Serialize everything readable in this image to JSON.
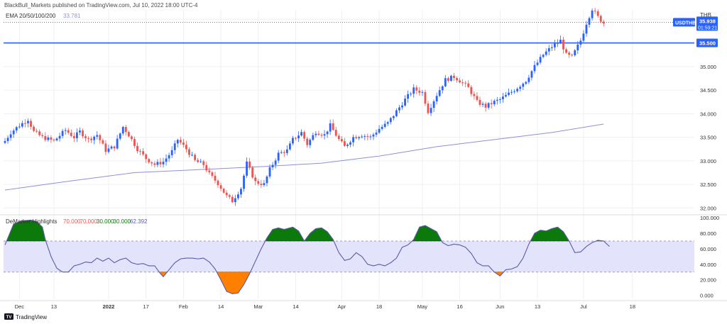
{
  "header": {
    "publish_line": "BlackBull_Markets published on TradingView.com, Jul 10, 2022 18:00 UTC-4"
  },
  "footer": {
    "logo_text": "TradingView",
    "logo_mark": "TV"
  },
  "colors": {
    "up": "#2962ff",
    "down": "#ef5350",
    "ema": "#8f8fd8",
    "level_line": "#2962ff",
    "price_dotted": "#2962ff",
    "demarker_line": "#5b5ba8",
    "band_fill": "#e3e3fb",
    "overbought_fill": "#0b7a0b",
    "oversold_fill": "#ff7f00",
    "grid": "#eef0f4",
    "axis_text": "#333333",
    "separator": "#d9dce3"
  },
  "chart_data": [
    {
      "type": "candlestick",
      "title": "USDTHB",
      "currency_label": "THB",
      "indicator_label": "EMA 20/50/100/200",
      "indicator_value": "33.781",
      "price_tag": {
        "symbol": "USDTHB",
        "price": "35.938",
        "countdown": "01:59:21",
        "value": 35.938
      },
      "level_line": {
        "label": "35.500",
        "value": 35.5
      },
      "top_tick_label": "36.000",
      "y_ticks": [
        "35.000",
        "34.500",
        "34.000",
        "33.500",
        "33.000",
        "32.500",
        "32.000"
      ],
      "y_tick_values": [
        35.0,
        34.5,
        34.0,
        33.5,
        33.0,
        32.5,
        32.0
      ],
      "ylim": [
        31.9,
        36.2
      ],
      "x_ticks": [
        "Dec",
        "13",
        "2022",
        "17",
        "Feb",
        "14",
        "Mar",
        "14",
        "Apr",
        "18",
        "May",
        "16",
        "Jun",
        "13",
        "Jul",
        "18"
      ],
      "x_tick_index": [
        5,
        17,
        36,
        49,
        62,
        75,
        88,
        101,
        117,
        130,
        145,
        158,
        172,
        185,
        201,
        218
      ],
      "bold_x_ticks": [
        "2022"
      ],
      "close_anchors": [
        [
          0,
          33.42
        ],
        [
          2,
          33.6
        ],
        [
          5,
          33.75
        ],
        [
          8,
          33.88
        ],
        [
          10,
          33.62
        ],
        [
          13,
          33.5
        ],
        [
          17,
          33.42
        ],
        [
          21,
          33.65
        ],
        [
          24,
          33.5
        ],
        [
          26,
          33.62
        ],
        [
          29,
          33.45
        ],
        [
          32,
          33.55
        ],
        [
          35,
          33.22
        ],
        [
          38,
          33.3
        ],
        [
          41,
          33.72
        ],
        [
          43,
          33.55
        ],
        [
          46,
          33.25
        ],
        [
          49,
          33.05
        ],
        [
          52,
          32.92
        ],
        [
          55,
          32.98
        ],
        [
          58,
          33.2
        ],
        [
          60,
          33.45
        ],
        [
          63,
          33.25
        ],
        [
          66,
          33.0
        ],
        [
          69,
          32.92
        ],
        [
          71,
          32.72
        ],
        [
          74,
          32.52
        ],
        [
          77,
          32.25
        ],
        [
          79,
          32.15
        ],
        [
          82,
          32.42
        ],
        [
          84,
          32.95
        ],
        [
          87,
          32.55
        ],
        [
          90,
          32.5
        ],
        [
          92,
          32.82
        ],
        [
          95,
          33.15
        ],
        [
          98,
          33.22
        ],
        [
          100,
          33.45
        ],
        [
          103,
          33.6
        ],
        [
          105,
          33.35
        ],
        [
          108,
          33.62
        ],
        [
          111,
          33.55
        ],
        [
          113,
          33.75
        ],
        [
          116,
          33.45
        ],
        [
          118,
          33.3
        ],
        [
          121,
          33.5
        ],
        [
          124,
          33.55
        ],
        [
          127,
          33.5
        ],
        [
          130,
          33.68
        ],
        [
          133,
          33.8
        ],
        [
          136,
          34.05
        ],
        [
          139,
          34.3
        ],
        [
          142,
          34.52
        ],
        [
          145,
          34.45
        ],
        [
          147,
          34.05
        ],
        [
          150,
          34.4
        ],
        [
          153,
          34.72
        ],
        [
          156,
          34.78
        ],
        [
          158,
          34.7
        ],
        [
          161,
          34.55
        ],
        [
          164,
          34.25
        ],
        [
          167,
          34.15
        ],
        [
          170,
          34.25
        ],
        [
          172,
          34.3
        ],
        [
          175,
          34.42
        ],
        [
          178,
          34.55
        ],
        [
          181,
          34.7
        ],
        [
          184,
          35.0
        ],
        [
          187,
          35.25
        ],
        [
          190,
          35.42
        ],
        [
          193,
          35.55
        ],
        [
          195,
          35.25
        ],
        [
          197,
          35.2
        ],
        [
          200,
          35.55
        ],
        [
          202,
          35.92
        ],
        [
          204,
          36.22
        ],
        [
          206,
          36.05
        ],
        [
          208,
          35.92
        ]
      ],
      "ema_anchors": [
        [
          0,
          32.38
        ],
        [
          20,
          32.55
        ],
        [
          45,
          32.75
        ],
        [
          70,
          32.82
        ],
        [
          90,
          32.88
        ],
        [
          110,
          32.95
        ],
        [
          130,
          33.1
        ],
        [
          150,
          33.3
        ],
        [
          170,
          33.45
        ],
        [
          190,
          33.6
        ],
        [
          208,
          33.78
        ]
      ]
    },
    {
      "type": "area",
      "title": "DeMarker Highlights",
      "values_text": [
        "70.000",
        "70.000",
        "30.000",
        "30.000",
        "62.392"
      ],
      "upper_band": 70,
      "lower_band": 30,
      "ylim": [
        -5,
        102
      ],
      "y_ticks": [
        "100.000",
        "80.000",
        "60.000",
        "40.000",
        "20.000",
        "0.000"
      ],
      "y_tick_values": [
        100,
        80,
        60,
        40,
        20,
        0
      ],
      "anchors": [
        [
          0,
          65
        ],
        [
          3,
          92
        ],
        [
          6,
          96
        ],
        [
          9,
          97
        ],
        [
          11,
          95
        ],
        [
          13,
          88
        ],
        [
          14,
          72
        ],
        [
          16,
          50
        ],
        [
          18,
          35
        ],
        [
          20,
          30
        ],
        [
          22,
          30
        ],
        [
          24,
          38
        ],
        [
          26,
          40
        ],
        [
          28,
          43
        ],
        [
          30,
          42
        ],
        [
          32,
          48
        ],
        [
          34,
          44
        ],
        [
          36,
          48
        ],
        [
          38,
          42
        ],
        [
          40,
          46
        ],
        [
          42,
          48
        ],
        [
          44,
          42
        ],
        [
          46,
          40
        ],
        [
          48,
          41
        ],
        [
          50,
          38
        ],
        [
          52,
          38
        ],
        [
          54,
          28
        ],
        [
          55,
          24
        ],
        [
          57,
          33
        ],
        [
          59,
          42
        ],
        [
          61,
          47
        ],
        [
          63,
          48
        ],
        [
          65,
          48
        ],
        [
          67,
          47
        ],
        [
          69,
          48
        ],
        [
          71,
          43
        ],
        [
          73,
          34
        ],
        [
          75,
          20
        ],
        [
          77,
          5
        ],
        [
          79,
          2
        ],
        [
          81,
          3
        ],
        [
          83,
          14
        ],
        [
          85,
          28
        ],
        [
          87,
          44
        ],
        [
          89,
          60
        ],
        [
          91,
          74
        ],
        [
          93,
          85
        ],
        [
          95,
          87
        ],
        [
          97,
          85
        ],
        [
          98,
          86
        ],
        [
          100,
          88
        ],
        [
          102,
          83
        ],
        [
          104,
          70
        ],
        [
          106,
          80
        ],
        [
          108,
          86
        ],
        [
          110,
          87
        ],
        [
          112,
          82
        ],
        [
          114,
          72
        ],
        [
          116,
          55
        ],
        [
          118,
          45
        ],
        [
          120,
          47
        ],
        [
          122,
          55
        ],
        [
          124,
          50
        ],
        [
          126,
          40
        ],
        [
          128,
          38
        ],
        [
          130,
          40
        ],
        [
          132,
          38
        ],
        [
          134,
          42
        ],
        [
          136,
          48
        ],
        [
          138,
          62
        ],
        [
          140,
          65
        ],
        [
          142,
          72
        ],
        [
          144,
          88
        ],
        [
          146,
          90
        ],
        [
          148,
          86
        ],
        [
          150,
          82
        ],
        [
          152,
          68
        ],
        [
          154,
          64
        ],
        [
          156,
          66
        ],
        [
          158,
          65
        ],
        [
          160,
          62
        ],
        [
          162,
          54
        ],
        [
          164,
          42
        ],
        [
          166,
          38
        ],
        [
          168,
          38
        ],
        [
          170,
          30
        ],
        [
          172,
          25
        ],
        [
          174,
          33
        ],
        [
          176,
          34
        ],
        [
          178,
          37
        ],
        [
          180,
          48
        ],
        [
          182,
          66
        ],
        [
          184,
          80
        ],
        [
          186,
          84
        ],
        [
          188,
          83
        ],
        [
          190,
          86
        ],
        [
          192,
          88
        ],
        [
          194,
          82
        ],
        [
          196,
          70
        ],
        [
          198,
          55
        ],
        [
          200,
          56
        ],
        [
          202,
          63
        ],
        [
          204,
          68
        ],
        [
          206,
          71
        ],
        [
          208,
          70
        ],
        [
          210,
          63
        ]
      ]
    }
  ]
}
